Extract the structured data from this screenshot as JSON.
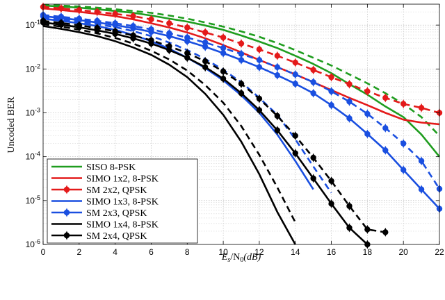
{
  "chart_data": {
    "type": "line",
    "xlabel": "E_s/N_0(dB)",
    "ylabel": "Uncoded BER",
    "x_label_parts": {
      "base": "E",
      "sub1": "s",
      "mid": "/N",
      "sub2": "0",
      "tail": "(dB)"
    },
    "ylabel_text": "Uncoded BER",
    "xlim": [
      0,
      22
    ],
    "ylim": [
      1e-06,
      0.3
    ],
    "yscale": "log",
    "grid": true,
    "legend_position": "bottom-left",
    "x_ticks": [
      0,
      2,
      4,
      6,
      8,
      10,
      12,
      14,
      16,
      18,
      20,
      22
    ],
    "x_tick_labels": [
      "0",
      "2",
      "4",
      "6",
      "8",
      "10",
      "12",
      "14",
      "16",
      "18",
      "20",
      "22"
    ],
    "y_ticks": [
      {
        "value": 1e-06,
        "exp": "-6"
      },
      {
        "value": 1e-05,
        "exp": "-5"
      },
      {
        "value": 0.0001,
        "exp": "-4"
      },
      {
        "value": 0.001,
        "exp": "-3"
      },
      {
        "value": 0.01,
        "exp": "-2"
      },
      {
        "value": 0.1,
        "exp": "-1"
      }
    ],
    "y_tick_base": "10",
    "series": [
      {
        "name": "SISO 8-PSK",
        "color": "#1f9d1f",
        "style": "solid",
        "marker": false,
        "x": [
          0,
          1,
          2,
          3,
          4,
          5,
          6,
          7,
          8,
          9,
          10,
          11,
          12,
          13,
          14,
          15,
          16,
          17,
          18,
          19,
          20,
          21,
          22
        ],
        "y": [
          0.28,
          0.265,
          0.25,
          0.23,
          0.21,
          0.19,
          0.165,
          0.14,
          0.12,
          0.098,
          0.078,
          0.058,
          0.042,
          0.03,
          0.02,
          0.013,
          0.008,
          0.0045,
          0.0026,
          0.0014,
          0.0008,
          0.00032,
          0.0001
        ]
      },
      {
        "name": "",
        "color": "#1f9d1f",
        "style": "dashed",
        "marker": false,
        "x": [
          0,
          1,
          2,
          3,
          4,
          5,
          6,
          7,
          8,
          9,
          10,
          11,
          12,
          13,
          14,
          15,
          16,
          17,
          18,
          19,
          20,
          21,
          22
        ],
        "y": [
          0.29,
          0.28,
          0.265,
          0.25,
          0.23,
          0.21,
          0.19,
          0.165,
          0.14,
          0.115,
          0.092,
          0.072,
          0.054,
          0.039,
          0.027,
          0.018,
          0.012,
          0.0075,
          0.0047,
          0.0028,
          0.0016,
          0.0008,
          0.0003
        ]
      },
      {
        "name": "SIMO 1x2, 8-PSK",
        "color": "#e41a1a",
        "style": "solid",
        "marker": false,
        "x": [
          0,
          1,
          2,
          3,
          4,
          5,
          6,
          7,
          8,
          9,
          10,
          11,
          12,
          13,
          14,
          15,
          16,
          17,
          18,
          19,
          20,
          21,
          22
        ],
        "y": [
          0.24,
          0.22,
          0.2,
          0.18,
          0.16,
          0.135,
          0.11,
          0.088,
          0.068,
          0.05,
          0.035,
          0.024,
          0.016,
          0.011,
          0.0075,
          0.005,
          0.0033,
          0.0022,
          0.0015,
          0.001,
          0.0007,
          0.0006,
          0.00055
        ]
      },
      {
        "name": "SM 2x2, QPSK",
        "color": "#e41a1a",
        "style": "dashed",
        "marker": true,
        "x": [
          0,
          1,
          2,
          3,
          4,
          5,
          6,
          7,
          8,
          9,
          10,
          11,
          12,
          13,
          14,
          15,
          16,
          17,
          18,
          19,
          20,
          21,
          22
        ],
        "y": [
          0.26,
          0.24,
          0.22,
          0.2,
          0.18,
          0.16,
          0.135,
          0.11,
          0.088,
          0.068,
          0.052,
          0.038,
          0.028,
          0.02,
          0.014,
          0.0095,
          0.0065,
          0.0045,
          0.0031,
          0.0022,
          0.0016,
          0.0013,
          0.001
        ]
      },
      {
        "name": "SIMO 1x3, 8-PSK",
        "color": "#1a4fe0",
        "style": "solid",
        "marker": false,
        "x": [
          0,
          1,
          2,
          3,
          4,
          5,
          6,
          7,
          8,
          9,
          10,
          11,
          12,
          13,
          14,
          15
        ],
        "y": [
          0.14,
          0.125,
          0.11,
          0.095,
          0.078,
          0.06,
          0.043,
          0.029,
          0.018,
          0.0105,
          0.0055,
          0.0025,
          0.001,
          0.00032,
          8e-05,
          1.8e-05
        ]
      },
      {
        "name": "",
        "color": "#1a4fe0",
        "style": "dashed",
        "marker": false,
        "x": [
          0,
          1,
          2,
          3,
          4,
          5,
          6,
          7,
          8,
          9,
          10,
          11,
          12,
          13,
          14,
          15,
          16
        ],
        "y": [
          0.15,
          0.135,
          0.12,
          0.105,
          0.09,
          0.073,
          0.056,
          0.04,
          0.027,
          0.017,
          0.0095,
          0.005,
          0.0022,
          0.0009,
          0.00025,
          6e-05,
          1.5e-05
        ]
      },
      {
        "name": "SM 2x3, QPSK",
        "color": "#1a4fe0",
        "style": "solid",
        "marker": true,
        "x": [
          0,
          1,
          2,
          3,
          4,
          5,
          6,
          7,
          8,
          9,
          10,
          11,
          12,
          13,
          14,
          15,
          16,
          17,
          18,
          19,
          20,
          21,
          22
        ],
        "y": [
          0.16,
          0.145,
          0.13,
          0.115,
          0.1,
          0.085,
          0.07,
          0.056,
          0.043,
          0.032,
          0.023,
          0.016,
          0.011,
          0.0072,
          0.0046,
          0.0028,
          0.0015,
          0.00075,
          0.00033,
          0.00014,
          5e-05,
          1.8e-05,
          6.5e-06
        ]
      },
      {
        "name": "",
        "color": "#1a4fe0",
        "style": "dashed",
        "marker": true,
        "x": [
          0,
          1,
          2,
          3,
          4,
          5,
          6,
          7,
          8,
          9,
          10,
          11,
          12,
          13,
          14,
          15,
          16,
          17,
          18,
          19,
          20,
          21,
          22
        ],
        "y": [
          0.17,
          0.155,
          0.14,
          0.125,
          0.11,
          0.095,
          0.08,
          0.065,
          0.052,
          0.04,
          0.03,
          0.022,
          0.016,
          0.011,
          0.0075,
          0.005,
          0.0031,
          0.0018,
          0.00095,
          0.00045,
          0.0002,
          8e-05,
          1.85e-05
        ]
      },
      {
        "name": "SIMO 1x4, 8-PSK",
        "color": "#000000",
        "style": "solid",
        "marker": false,
        "x": [
          0,
          1,
          2,
          3,
          4,
          5,
          6,
          7,
          8,
          9,
          10,
          11,
          12,
          13,
          14
        ],
        "y": [
          0.095,
          0.082,
          0.069,
          0.056,
          0.043,
          0.031,
          0.021,
          0.0125,
          0.0065,
          0.0027,
          0.0009,
          0.00022,
          4e-05,
          5.5e-06,
          1e-06
        ]
      },
      {
        "name": "",
        "color": "#000000",
        "style": "dashed",
        "marker": false,
        "x": [
          0,
          1,
          2,
          3,
          4,
          5,
          6,
          7,
          8,
          9,
          10,
          11,
          12,
          13,
          14
        ],
        "y": [
          0.105,
          0.092,
          0.079,
          0.065,
          0.051,
          0.038,
          0.026,
          0.0165,
          0.0092,
          0.0043,
          0.0017,
          0.0005,
          0.00011,
          2e-05,
          3.2e-06
        ]
      },
      {
        "name": "SM 2x4, QPSK",
        "color": "#000000",
        "style": "solid",
        "marker": true,
        "x": [
          0,
          1,
          2,
          3,
          4,
          5,
          6,
          7,
          8,
          9,
          10,
          11,
          12,
          13,
          14,
          15,
          16,
          17,
          18
        ],
        "y": [
          0.115,
          0.102,
          0.089,
          0.076,
          0.063,
          0.05,
          0.038,
          0.027,
          0.018,
          0.011,
          0.006,
          0.0028,
          0.00115,
          0.0004,
          0.00012,
          3.2e-05,
          8.5e-06,
          2.4e-06,
          1e-06
        ]
      },
      {
        "name": "",
        "color": "#000000",
        "style": "dashed",
        "marker": true,
        "x": [
          0,
          1,
          2,
          3,
          4,
          5,
          6,
          7,
          8,
          9,
          10,
          11,
          12,
          13,
          14,
          15,
          16,
          17,
          18,
          19
        ],
        "y": [
          0.125,
          0.112,
          0.099,
          0.086,
          0.072,
          0.058,
          0.045,
          0.033,
          0.023,
          0.015,
          0.0088,
          0.0046,
          0.0021,
          0.00085,
          0.0003,
          9.5e-05,
          2.8e-05,
          7.5e-06,
          2.2e-06,
          1.9e-06
        ]
      }
    ]
  }
}
